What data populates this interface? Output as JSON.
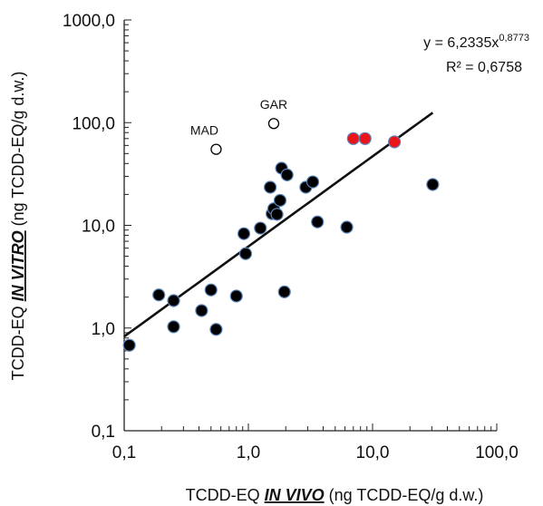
{
  "chart_data": {
    "type": "scatter",
    "x_scale": "log",
    "y_scale": "log",
    "xlim": [
      0.1,
      100
    ],
    "ylim": [
      0.1,
      1000
    ],
    "x_tick_labels": [
      "0,1",
      "1,0",
      "10,0",
      "100,0"
    ],
    "y_tick_labels": [
      "0,1",
      "1,0",
      "10,0",
      "100,0",
      "1000,0"
    ],
    "xlabel_parts": [
      "TCDD-EQ ",
      "IN VIVO",
      " (ng TCDD-EQ/g d.w.)"
    ],
    "ylabel_parts": [
      "TCDD-EQ ",
      "IN VITRO",
      " (ng TCDD-EQ/g d.w.)"
    ],
    "grid": false,
    "series": [
      {
        "marker": "filled-circle",
        "color": "#000000",
        "edge_color": "#5b84b8",
        "points": [
          [
            0.11,
            0.68
          ],
          [
            0.19,
            2.1
          ],
          [
            0.25,
            1.85
          ],
          [
            0.25,
            1.03
          ],
          [
            0.42,
            1.48
          ],
          [
            0.5,
            2.35
          ],
          [
            0.55,
            0.97
          ],
          [
            0.8,
            2.05
          ],
          [
            0.92,
            8.3
          ],
          [
            0.95,
            5.3
          ],
          [
            1.25,
            9.4
          ],
          [
            1.5,
            23.5
          ],
          [
            1.55,
            13.0
          ],
          [
            1.6,
            14.5
          ],
          [
            1.7,
            12.8
          ],
          [
            1.8,
            17.5
          ],
          [
            1.85,
            36.0
          ],
          [
            1.95,
            2.25
          ],
          [
            2.05,
            31.0
          ],
          [
            2.9,
            23.5
          ],
          [
            3.3,
            26.5
          ],
          [
            3.6,
            10.8
          ],
          [
            6.2,
            9.6
          ],
          [
            30.5,
            25.0
          ]
        ]
      },
      {
        "marker": "filled-circle",
        "color": "#e8161b",
        "edge_color": "#5b84b8",
        "points": [
          [
            7.0,
            70.0
          ],
          [
            8.7,
            70.0
          ],
          [
            15.0,
            65.0
          ]
        ]
      },
      {
        "marker": "open-circle",
        "color": "#ffffff",
        "edge_color": "#000000",
        "points": [
          [
            0.55,
            55.0
          ],
          [
            1.6,
            98.0
          ]
        ]
      }
    ],
    "annotations": [
      {
        "text": "MAD",
        "x": 0.55,
        "y": 55.0
      },
      {
        "text": "GAR",
        "x": 1.6,
        "y": 98.0
      }
    ],
    "trendline": {
      "type": "power",
      "a": 6.2335,
      "b": 0.8773,
      "x_range": [
        0.1,
        30.5
      ],
      "equation_base": "y = 6,2335x",
      "equation_exponent": "0,8773",
      "r_squared_label": "R² = 0,6758"
    }
  }
}
